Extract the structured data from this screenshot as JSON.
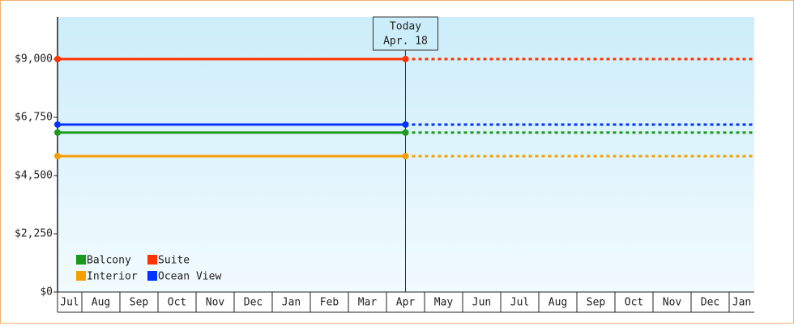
{
  "chart_data": {
    "type": "line",
    "categories": [
      "Jul",
      "Aug",
      "Sep",
      "Oct",
      "Nov",
      "Dec",
      "Jan",
      "Feb",
      "Mar",
      "Apr",
      "May",
      "Jun",
      "Jul",
      "Aug",
      "Sep",
      "Oct",
      "Nov",
      "Dec",
      "Jan"
    ],
    "today": [
      "Today",
      "Apr. 18"
    ],
    "ylim": [
      0,
      10625
    ],
    "yticks": [
      {
        "value": 0,
        "label": "$0"
      },
      {
        "value": 2250,
        "label": "$2,250"
      },
      {
        "value": 4500,
        "label": "$4,500"
      },
      {
        "value": 6750,
        "label": "$6,750"
      },
      {
        "value": 9000,
        "label": "$9,000"
      }
    ],
    "series": [
      {
        "name": "Balcony",
        "color": "#1a9a1a",
        "value": 6160
      },
      {
        "name": "Suite",
        "color": "#ff3300",
        "value": 9000
      },
      {
        "name": "Interior",
        "color": "#f5a000",
        "value": 5250
      },
      {
        "name": "Ocean View",
        "color": "#0033ff",
        "value": 6470
      }
    ],
    "legend": "bottom-left"
  }
}
